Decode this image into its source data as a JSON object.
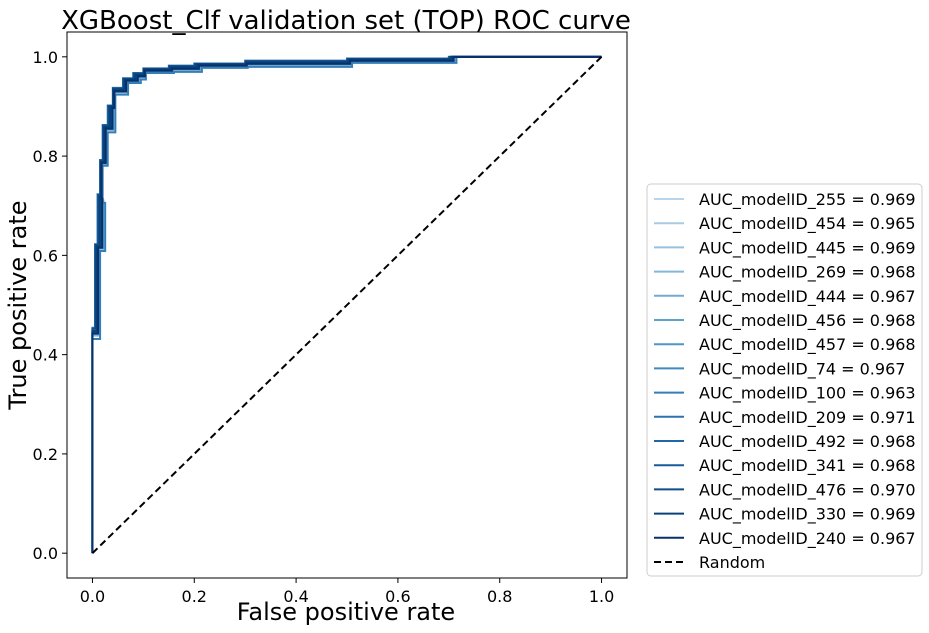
{
  "chart_data": {
    "type": "line",
    "title": "XGBoost_Clf validation set (TOP) ROC curve",
    "xlabel": "False positive rate",
    "ylabel": "True positive rate",
    "xlim": [
      -0.05,
      1.05
    ],
    "ylim": [
      -0.05,
      1.05
    ],
    "xticks": [
      "0.0",
      "0.2",
      "0.4",
      "0.6",
      "0.8",
      "1.0"
    ],
    "yticks": [
      "0.0",
      "0.2",
      "0.4",
      "0.6",
      "0.8",
      "1.0"
    ],
    "grid": false,
    "legend_position": "center-right outside",
    "series": [
      {
        "name": "AUC_modelID_255 = 0.969",
        "color": "#b7d4ea",
        "dx": 0.004,
        "dy": -0.004,
        "x": [
          0,
          0.005,
          0.01,
          0.015,
          0.02,
          0.03,
          0.04,
          0.06,
          0.08,
          0.1,
          0.15,
          0.2,
          0.3,
          0.5,
          0.7,
          1
        ],
        "y": [
          0,
          0.45,
          0.62,
          0.72,
          0.79,
          0.86,
          0.9,
          0.935,
          0.955,
          0.965,
          0.975,
          0.98,
          0.985,
          0.99,
          0.995,
          1
        ]
      },
      {
        "name": "AUC_modelID_454 = 0.965",
        "color": "#a8cbe4",
        "dx": 0.008,
        "dy": -0.012,
        "x": [
          0,
          0.005,
          0.01,
          0.015,
          0.02,
          0.03,
          0.04,
          0.06,
          0.08,
          0.1,
          0.15,
          0.2,
          0.3,
          0.5,
          0.7,
          1
        ],
        "y": [
          0,
          0.45,
          0.62,
          0.72,
          0.79,
          0.86,
          0.9,
          0.935,
          0.955,
          0.965,
          0.975,
          0.98,
          0.985,
          0.99,
          0.995,
          1
        ]
      },
      {
        "name": "AUC_modelID_445 = 0.969",
        "color": "#97c1df",
        "dx": 0.002,
        "dy": 0.002,
        "x": [
          0,
          0.005,
          0.01,
          0.015,
          0.02,
          0.03,
          0.04,
          0.06,
          0.08,
          0.1,
          0.15,
          0.2,
          0.3,
          0.5,
          0.7,
          1
        ],
        "y": [
          0,
          0.45,
          0.62,
          0.72,
          0.79,
          0.86,
          0.9,
          0.935,
          0.955,
          0.965,
          0.975,
          0.98,
          0.985,
          0.99,
          0.995,
          1
        ]
      },
      {
        "name": "AUC_modelID_269 = 0.968",
        "color": "#84b6d9",
        "dx": 0.005,
        "dy": -0.006,
        "x": [
          0,
          0.005,
          0.01,
          0.015,
          0.02,
          0.03,
          0.04,
          0.06,
          0.08,
          0.1,
          0.15,
          0.2,
          0.3,
          0.5,
          0.7,
          1
        ],
        "y": [
          0,
          0.45,
          0.62,
          0.72,
          0.79,
          0.86,
          0.9,
          0.935,
          0.955,
          0.965,
          0.975,
          0.98,
          0.985,
          0.99,
          0.995,
          1
        ]
      },
      {
        "name": "AUC_modelID_444 = 0.967",
        "color": "#71abd3",
        "dx": 0.006,
        "dy": -0.008,
        "x": [
          0,
          0.005,
          0.01,
          0.015,
          0.02,
          0.03,
          0.04,
          0.06,
          0.08,
          0.1,
          0.15,
          0.2,
          0.3,
          0.5,
          0.7,
          1
        ],
        "y": [
          0,
          0.45,
          0.62,
          0.72,
          0.79,
          0.86,
          0.9,
          0.935,
          0.955,
          0.965,
          0.975,
          0.98,
          0.985,
          0.99,
          0.995,
          1
        ]
      },
      {
        "name": "AUC_modelID_456 = 0.968",
        "color": "#5fa0cc",
        "dx": 0.004,
        "dy": -0.005,
        "x": [
          0,
          0.005,
          0.01,
          0.015,
          0.02,
          0.03,
          0.04,
          0.06,
          0.08,
          0.1,
          0.15,
          0.2,
          0.3,
          0.5,
          0.7,
          1
        ],
        "y": [
          0,
          0.45,
          0.62,
          0.72,
          0.79,
          0.86,
          0.9,
          0.935,
          0.955,
          0.965,
          0.975,
          0.98,
          0.985,
          0.99,
          0.995,
          1
        ]
      },
      {
        "name": "AUC_modelID_457 = 0.968",
        "color": "#4f95c6",
        "dx": 0.003,
        "dy": -0.003,
        "x": [
          0,
          0.005,
          0.01,
          0.015,
          0.02,
          0.03,
          0.04,
          0.06,
          0.08,
          0.1,
          0.15,
          0.2,
          0.3,
          0.5,
          0.7,
          1
        ],
        "y": [
          0,
          0.45,
          0.62,
          0.72,
          0.79,
          0.86,
          0.9,
          0.935,
          0.955,
          0.965,
          0.975,
          0.98,
          0.985,
          0.99,
          0.995,
          1
        ]
      },
      {
        "name": "AUC_modelID_74 = 0.967",
        "color": "#418abf",
        "dx": 0.007,
        "dy": -0.009,
        "x": [
          0,
          0.005,
          0.01,
          0.015,
          0.02,
          0.03,
          0.04,
          0.06,
          0.08,
          0.1,
          0.15,
          0.2,
          0.3,
          0.5,
          0.7,
          1
        ],
        "y": [
          0,
          0.45,
          0.62,
          0.72,
          0.79,
          0.86,
          0.9,
          0.935,
          0.955,
          0.965,
          0.975,
          0.98,
          0.985,
          0.99,
          0.995,
          1
        ]
      },
      {
        "name": "AUC_modelID_100 = 0.963",
        "color": "#357eb8",
        "dx": 0.01,
        "dy": -0.018,
        "x": [
          0,
          0.005,
          0.01,
          0.015,
          0.02,
          0.03,
          0.04,
          0.06,
          0.08,
          0.1,
          0.15,
          0.2,
          0.3,
          0.5,
          0.7,
          1
        ],
        "y": [
          0,
          0.45,
          0.62,
          0.72,
          0.79,
          0.86,
          0.9,
          0.935,
          0.955,
          0.965,
          0.975,
          0.98,
          0.985,
          0.99,
          0.995,
          1
        ]
      },
      {
        "name": "AUC_modelID_209 = 0.971",
        "color": "#2b72b0",
        "dx": 0.0,
        "dy": 0.004,
        "x": [
          0,
          0.005,
          0.01,
          0.015,
          0.02,
          0.03,
          0.04,
          0.06,
          0.08,
          0.1,
          0.15,
          0.2,
          0.3,
          0.5,
          0.7,
          1
        ],
        "y": [
          0,
          0.45,
          0.62,
          0.72,
          0.79,
          0.86,
          0.9,
          0.935,
          0.955,
          0.965,
          0.975,
          0.98,
          0.985,
          0.99,
          0.995,
          1
        ]
      },
      {
        "name": "AUC_modelID_492 = 0.968",
        "color": "#2166a7",
        "dx": 0.004,
        "dy": -0.004,
        "x": [
          0,
          0.005,
          0.01,
          0.015,
          0.02,
          0.03,
          0.04,
          0.06,
          0.08,
          0.1,
          0.15,
          0.2,
          0.3,
          0.5,
          0.7,
          1
        ],
        "y": [
          0,
          0.45,
          0.62,
          0.72,
          0.79,
          0.86,
          0.9,
          0.935,
          0.955,
          0.965,
          0.975,
          0.98,
          0.985,
          0.99,
          0.995,
          1
        ]
      },
      {
        "name": "AUC_modelID_341 = 0.968",
        "color": "#185a9a",
        "dx": 0.005,
        "dy": -0.005,
        "x": [
          0,
          0.005,
          0.01,
          0.015,
          0.02,
          0.03,
          0.04,
          0.06,
          0.08,
          0.1,
          0.15,
          0.2,
          0.3,
          0.5,
          0.7,
          1
        ],
        "y": [
          0,
          0.45,
          0.62,
          0.72,
          0.79,
          0.86,
          0.9,
          0.935,
          0.955,
          0.965,
          0.975,
          0.98,
          0.985,
          0.99,
          0.995,
          1
        ]
      },
      {
        "name": "AUC_modelID_476 = 0.970",
        "color": "#0f4e8b",
        "dx": 0.001,
        "dy": 0.002,
        "x": [
          0,
          0.005,
          0.01,
          0.015,
          0.02,
          0.03,
          0.04,
          0.06,
          0.08,
          0.1,
          0.15,
          0.2,
          0.3,
          0.5,
          0.7,
          1
        ],
        "y": [
          0,
          0.45,
          0.62,
          0.72,
          0.79,
          0.86,
          0.9,
          0.935,
          0.955,
          0.965,
          0.975,
          0.98,
          0.985,
          0.99,
          0.995,
          1
        ]
      },
      {
        "name": "AUC_modelID_330 = 0.969",
        "color": "#09427a",
        "dx": 0.003,
        "dy": -0.002,
        "x": [
          0,
          0.005,
          0.01,
          0.015,
          0.02,
          0.03,
          0.04,
          0.06,
          0.08,
          0.1,
          0.15,
          0.2,
          0.3,
          0.5,
          0.7,
          1
        ],
        "y": [
          0,
          0.45,
          0.62,
          0.72,
          0.79,
          0.86,
          0.9,
          0.935,
          0.955,
          0.965,
          0.975,
          0.98,
          0.985,
          0.99,
          0.995,
          1
        ]
      },
      {
        "name": "AUC_modelID_240 = 0.967",
        "color": "#08306b",
        "dx": 0.006,
        "dy": -0.007,
        "x": [
          0,
          0.005,
          0.01,
          0.015,
          0.02,
          0.03,
          0.04,
          0.06,
          0.08,
          0.1,
          0.15,
          0.2,
          0.3,
          0.5,
          0.7,
          1
        ],
        "y": [
          0,
          0.45,
          0.62,
          0.72,
          0.79,
          0.86,
          0.9,
          0.935,
          0.955,
          0.965,
          0.975,
          0.98,
          0.985,
          0.99,
          0.995,
          1
        ]
      }
    ],
    "baseline": {
      "name": "Random",
      "color": "#000000",
      "x": [
        0,
        1
      ],
      "y": [
        0,
        1
      ],
      "dashed": true
    }
  }
}
